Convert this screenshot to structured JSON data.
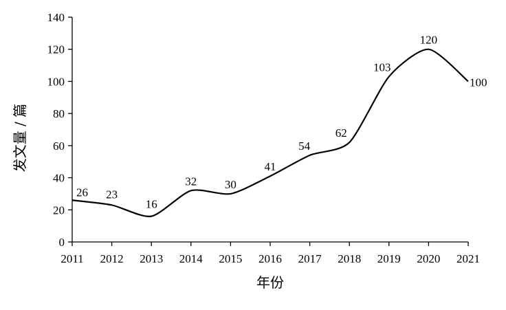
{
  "chart_data": {
    "type": "line",
    "x": [
      "2011",
      "2012",
      "2013",
      "2014",
      "2015",
      "2016",
      "2017",
      "2018",
      "2019",
      "2020",
      "2021"
    ],
    "series": [
      {
        "values": [
          26,
          23,
          16,
          32,
          30,
          41,
          54,
          62,
          103,
          120,
          100
        ],
        "color": "#000000"
      }
    ],
    "data_labels": [
      "26",
      "23",
      "16",
      "32",
      "30",
      "41",
      "54",
      "62",
      "103",
      "120",
      "100"
    ],
    "ylim": [
      0,
      140
    ],
    "yticks": [
      "0",
      "20",
      "40",
      "60",
      "80",
      "100",
      "120",
      "140"
    ],
    "xlabel": "年份",
    "ylabel": "发文量 / 篇",
    "grid": false,
    "legend": "none"
  }
}
